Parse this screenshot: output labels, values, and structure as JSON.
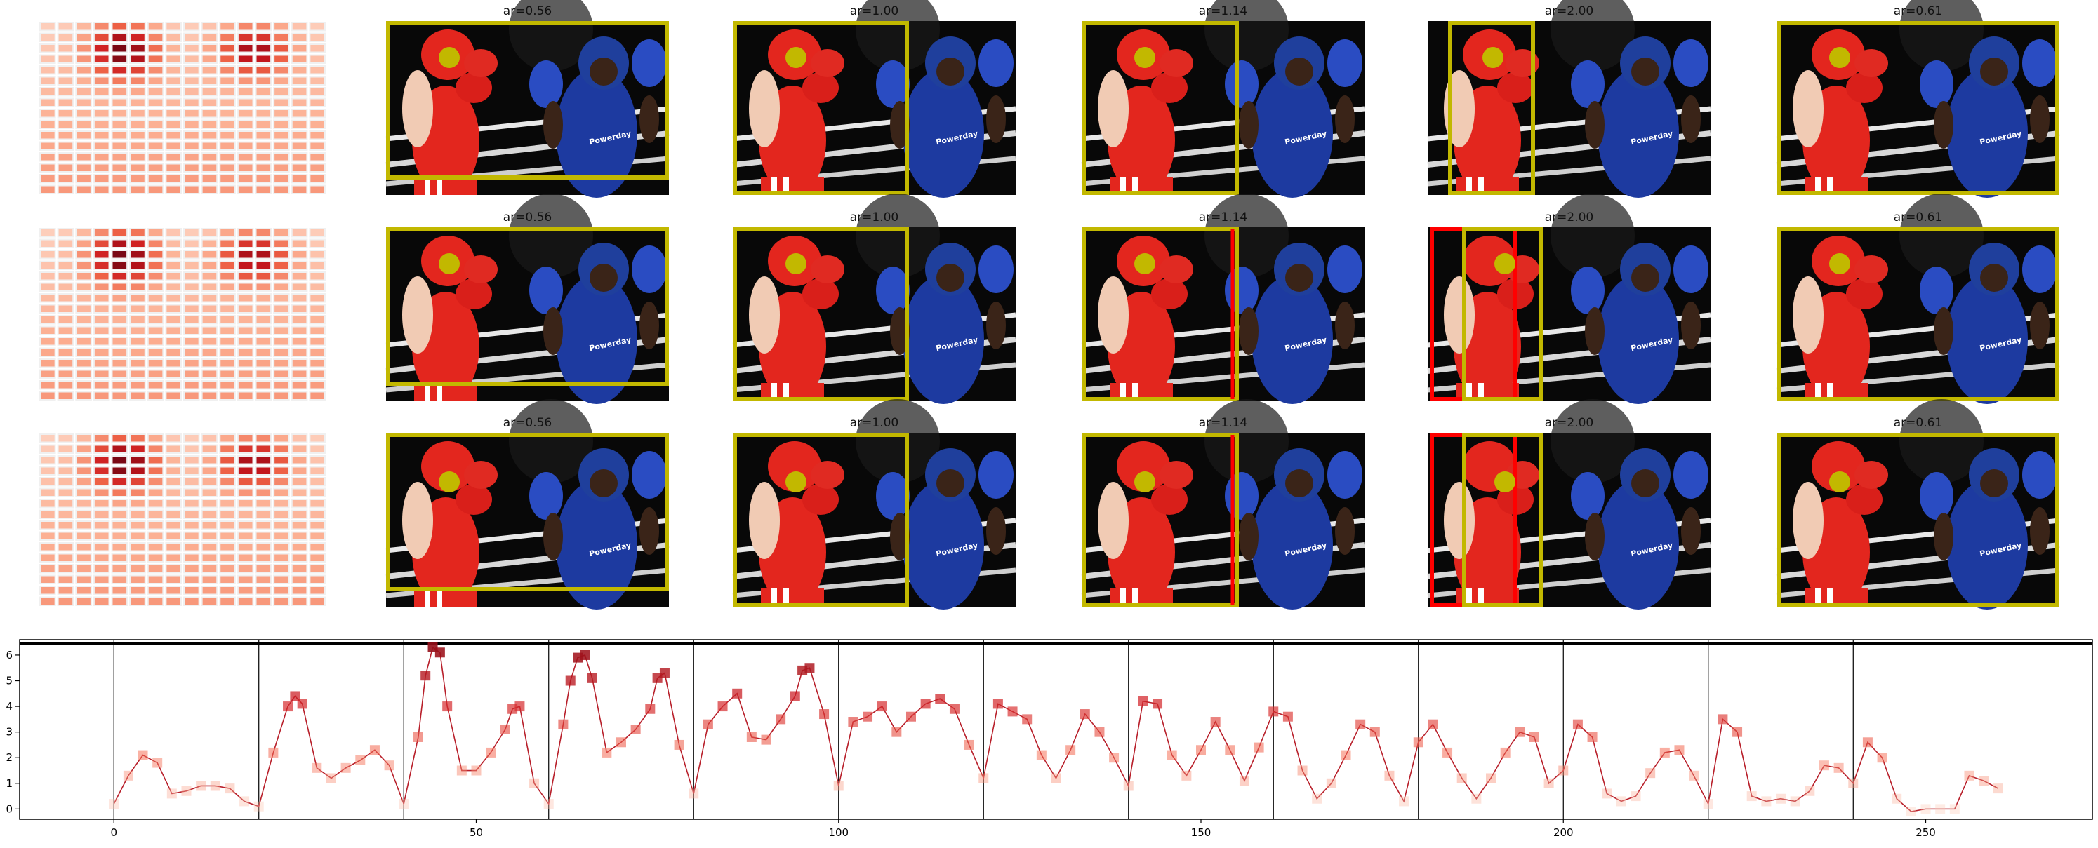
{
  "figure": {
    "rows": [
      {
        "panels": [
          {
            "title": "ar=0.56"
          },
          {
            "title": "ar=1.00"
          },
          {
            "title": "ar=1.14"
          },
          {
            "title": "ar=2.00"
          },
          {
            "title": "ar=0.61"
          }
        ]
      },
      {
        "panels": [
          {
            "title": "ar=0.56"
          },
          {
            "title": "ar=1.00"
          },
          {
            "title": "ar=1.14"
          },
          {
            "title": "ar=2.00"
          },
          {
            "title": "ar=0.61"
          }
        ]
      },
      {
        "panels": [
          {
            "title": "ar=0.56"
          },
          {
            "title": "ar=1.00"
          },
          {
            "title": "ar=1.14"
          },
          {
            "title": "ar=2.00"
          },
          {
            "title": "ar=0.61"
          }
        ]
      }
    ],
    "photo_text": "Powerday",
    "colors": {
      "crop_box": "#c2b800",
      "alt_crop_box": "#ff0000",
      "focus_dot": "#c2b800",
      "line": "#b81f2a",
      "ring_background": "#080808",
      "red_kit": "#e3261e",
      "blue_kit": "#1d3aa0"
    }
  },
  "chart_data": {
    "type": "line",
    "title": "",
    "xlabel": "",
    "ylabel": "",
    "xlim": [
      -13,
      273
    ],
    "ylim": [
      -0.4,
      6.6
    ],
    "xticks": [
      0,
      50,
      100,
      150,
      200,
      250
    ],
    "yticks": [
      0,
      1,
      2,
      3,
      4,
      5,
      6
    ],
    "vlines": [
      0,
      20,
      40,
      60,
      80,
      100,
      120,
      140,
      160,
      180,
      200,
      220,
      240
    ],
    "hline": 6.45,
    "grid": false,
    "legend": "none",
    "series": [
      {
        "x": [
          0,
          2,
          4,
          6,
          8,
          10,
          12,
          14,
          16,
          18,
          20,
          22,
          24,
          25,
          26,
          28,
          30,
          32,
          34,
          36,
          38,
          40,
          42,
          43,
          44,
          45,
          46,
          48,
          50,
          52,
          54,
          55,
          56,
          58,
          60,
          62,
          63,
          64,
          65,
          66,
          68,
          70,
          72,
          74,
          75,
          76,
          78,
          80,
          82,
          84,
          86,
          88,
          90,
          92,
          94,
          95,
          96,
          98,
          100,
          102,
          104,
          106,
          108,
          110,
          112,
          114,
          116,
          118,
          120,
          122,
          124,
          126,
          128,
          130,
          132,
          134,
          136,
          138,
          140,
          142,
          144,
          146,
          148,
          150,
          152,
          154,
          156,
          158,
          160,
          162,
          164,
          166,
          168,
          170,
          172,
          174,
          176,
          178,
          180,
          182,
          184,
          186,
          188,
          190,
          192,
          194,
          196,
          198,
          200,
          202,
          204,
          206,
          208,
          210,
          212,
          214,
          216,
          218,
          220,
          222,
          224,
          226,
          228,
          230,
          232,
          234,
          236,
          238,
          240,
          242,
          244,
          246,
          248,
          250,
          252,
          254,
          256,
          258,
          260
        ],
        "y": [
          0.2,
          1.3,
          2.1,
          1.8,
          0.6,
          0.7,
          0.9,
          0.9,
          0.8,
          0.3,
          0.1,
          2.2,
          4.0,
          4.4,
          4.1,
          1.6,
          1.2,
          1.6,
          1.9,
          2.3,
          1.7,
          0.2,
          2.8,
          5.2,
          6.3,
          6.1,
          4.0,
          1.5,
          1.5,
          2.2,
          3.1,
          3.9,
          4.0,
          1.0,
          0.2,
          3.3,
          5.0,
          5.9,
          6.0,
          5.1,
          2.2,
          2.6,
          3.1,
          3.9,
          5.1,
          5.3,
          2.5,
          0.6,
          3.3,
          4.0,
          4.5,
          2.8,
          2.7,
          3.5,
          4.4,
          5.4,
          5.5,
          3.7,
          0.9,
          3.4,
          3.6,
          4.0,
          3.0,
          3.6,
          4.1,
          4.3,
          3.9,
          2.5,
          1.2,
          4.1,
          3.8,
          3.5,
          2.1,
          1.2,
          2.3,
          3.7,
          3.0,
          2.0,
          0.9,
          4.2,
          4.1,
          2.1,
          1.3,
          2.3,
          3.4,
          2.3,
          1.1,
          2.4,
          3.8,
          3.6,
          1.5,
          0.4,
          1.0,
          2.1,
          3.3,
          3.0,
          1.3,
          0.3,
          2.6,
          3.3,
          2.2,
          1.2,
          0.4,
          1.2,
          2.2,
          3.0,
          2.8,
          1.0,
          1.5,
          3.3,
          2.8,
          0.6,
          0.3,
          0.5,
          1.4,
          2.2,
          2.3,
          1.3,
          0.2,
          3.5,
          3.0,
          0.5,
          0.3,
          0.4,
          0.3,
          0.7,
          1.7,
          1.6,
          1.0,
          2.6,
          2.0,
          0.4,
          -0.1,
          0.0,
          0.0,
          0.0,
          1.3,
          1.1,
          0.8
        ]
      }
    ]
  }
}
